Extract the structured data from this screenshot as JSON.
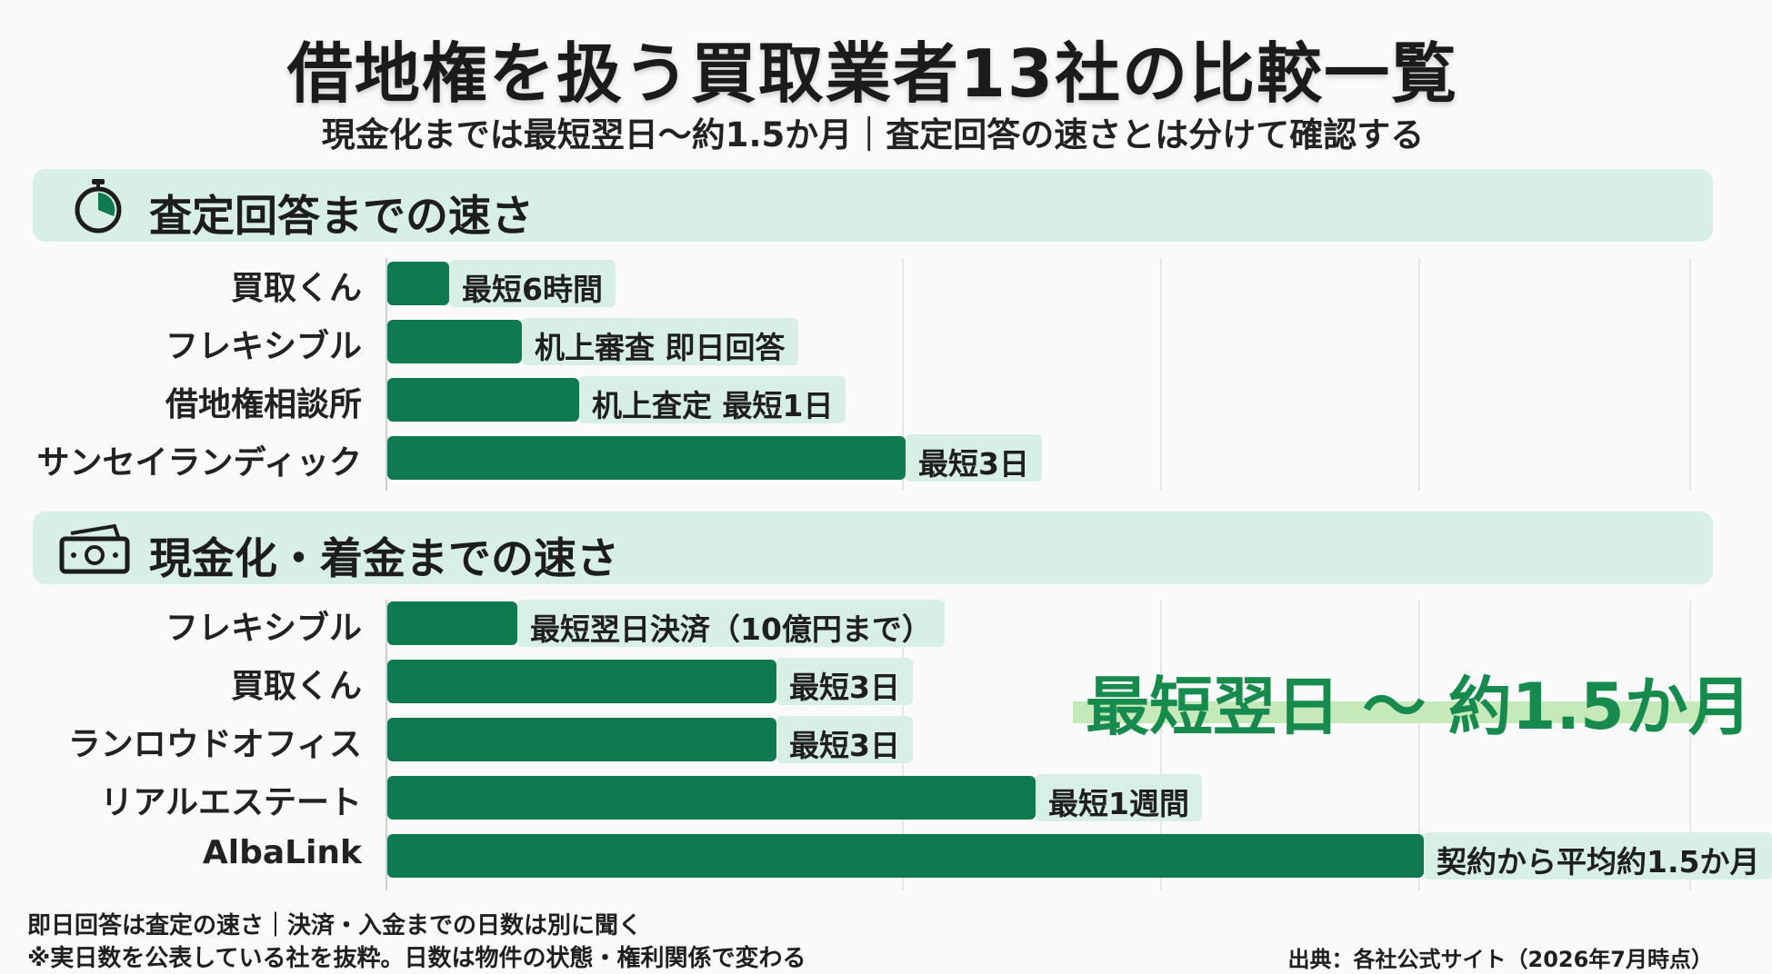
{
  "header": {
    "title": "借地権を扱う買取業者13社の比較一覧",
    "subtitle": "現金化までは最短翌日〜約1.5か月｜査定回答の速さとは分けて確認する"
  },
  "sections": {
    "appraisal": {
      "title": "査定回答までの速さ",
      "icon": "stopwatch-icon"
    },
    "cash": {
      "title": "現金化・着金までの速さ",
      "icon": "cash-icon"
    }
  },
  "callout": {
    "text": "最短翌日 〜 約1.5か月"
  },
  "notes": {
    "line1": "即日回答は査定の速さ｜決済・入金までの日数は別に聞く",
    "line2": "※実日数を公表している社を抜粋。日数は物件の状態・権利関係で変わる",
    "source": "出典：各社公式サイト（2026年7月時点）"
  },
  "colors": {
    "bar": "#0f7a50",
    "label_bg": "#d7efe4",
    "section_bg": "#d7efe4",
    "callout": "#178a4d",
    "callout_highlight": "#c5e9b9"
  },
  "chart_data": [
    {
      "type": "bar",
      "orientation": "horizontal",
      "title": "査定回答までの速さ",
      "grid": true,
      "categories": [
        "買取くん",
        "フレキシブル",
        "借地権相談所",
        "サンセイランディック"
      ],
      "values": [
        0.12,
        0.26,
        0.37,
        1.0
      ],
      "data_labels": [
        "最短6時間",
        "机上審査 即日回答",
        "机上査定 最短1日",
        "最短3日"
      ]
    },
    {
      "type": "bar",
      "orientation": "horizontal",
      "title": "現金化・着金までの速さ",
      "grid": true,
      "categories": [
        "フレキシブル",
        "買取くん",
        "ランロウドオフィス",
        "リアルエステート",
        "AlbaLink"
      ],
      "values": [
        0.09,
        0.27,
        0.27,
        0.45,
        0.72
      ],
      "data_labels": [
        "最短翌日決済（10億円まで）",
        "最短3日",
        "最短3日",
        "最短1週間",
        "契約から平均約1.5か月"
      ]
    }
  ]
}
